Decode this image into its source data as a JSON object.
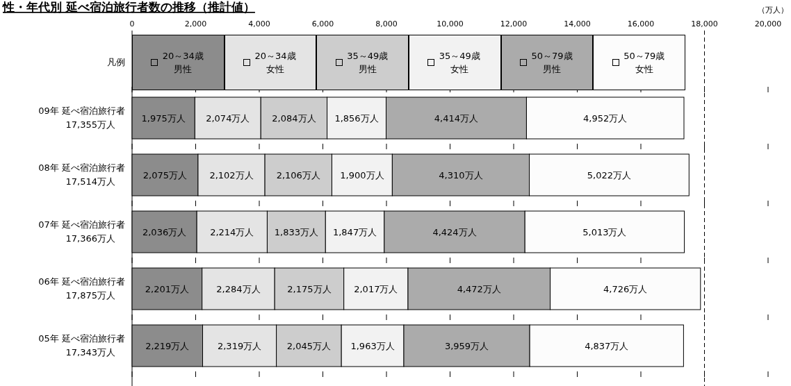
{
  "chart_data": {
    "type": "bar",
    "orientation": "horizontal",
    "stacked": true,
    "title": "性・年代別 延べ宿泊旅行者数の推移（推計値）",
    "xlabel": "（万人）",
    "categories": [
      "09年 延べ宿泊旅行者",
      "08年 延べ宿泊旅行者",
      "07年 延べ宿泊旅行者",
      "06年 延べ宿泊旅行者",
      "05年 延べ宿泊旅行者"
    ],
    "totals": [
      "17,355万人",
      "17,514万人",
      "17,366万人",
      "17,875万人",
      "17,343万人"
    ],
    "xlim": [
      0,
      20000
    ],
    "xticks": [
      0,
      {
        "value": 2000,
        "label": "2,000"
      },
      {
        "value": 4000,
        "label": "4,000"
      },
      {
        "value": 6000,
        "label": "6,000"
      },
      {
        "value": 8000,
        "label": "8,000"
      },
      {
        "value": 10000,
        "label": "10,000"
      },
      {
        "value": 12000,
        "label": "12,000"
      },
      {
        "value": 14000,
        "label": "14,000"
      },
      {
        "value": 16000,
        "label": "16,000"
      },
      {
        "value": 18000,
        "label": "18,000"
      },
      {
        "value": 20000,
        "label": "20,000"
      }
    ],
    "legend": "top",
    "legend_title": "凡例",
    "ref_lines": [
      {
        "axis": "x",
        "value": 18000,
        "line_style": "dashed",
        "color": "#000000"
      }
    ],
    "series": [
      {
        "name": "20～34歳男性",
        "color": "#8c8c8c",
        "values": [
          1975,
          2075,
          2036,
          2201,
          2219
        ],
        "value_labels": [
          "1,975万人",
          "2,075万人",
          "2,036万人",
          "2,201万人",
          "2,219万人"
        ]
      },
      {
        "name": "20～34歳女性",
        "color": "#e4e4e4",
        "values": [
          2074,
          2102,
          2214,
          2284,
          2319
        ],
        "value_labels": [
          "2,074万人",
          "2,102万人",
          "2,214万人",
          "2,284万人",
          "2,319万人"
        ]
      },
      {
        "name": "35～49歳男性",
        "color": "#cdcdcd",
        "values": [
          2084,
          2106,
          1833,
          2175,
          2045
        ],
        "value_labels": [
          "2,084万人",
          "2,106万人",
          "1,833万人",
          "2,175万人",
          "2,045万人"
        ]
      },
      {
        "name": "35～49歳女性",
        "color": "#f2f2f2",
        "values": [
          1856,
          1900,
          1847,
          2017,
          1963
        ],
        "value_labels": [
          "1,856万人",
          "1,900万人",
          "1,847万人",
          "2,017万人",
          "1,963万人"
        ]
      },
      {
        "name": "50～79歳男性",
        "color": "#ababab",
        "values": [
          4414,
          4310,
          4424,
          4472,
          3959
        ],
        "value_labels": [
          "4,414万人",
          "4,310万人",
          "4,424万人",
          "4,472万人",
          "3,959万人"
        ]
      },
      {
        "name": "50～79歳女性",
        "color": "#fcfcfc",
        "values": [
          4952,
          5022,
          5013,
          4726,
          4837
        ],
        "value_labels": [
          "4,952万人",
          "5,022万人",
          "5,013万人",
          "4,726万人",
          "4,837万人"
        ]
      }
    ]
  }
}
